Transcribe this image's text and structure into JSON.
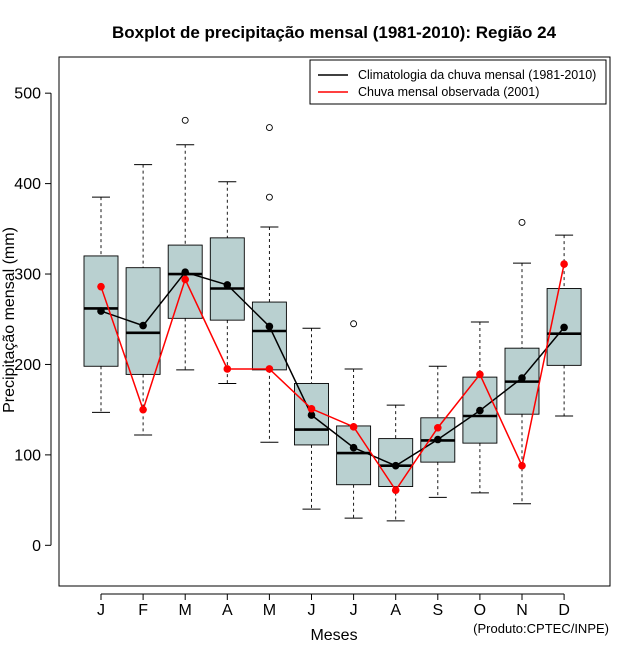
{
  "chart_data": {
    "type": "boxplot",
    "title": "Boxplot de precipitação mensal (1981-2010): Região 24",
    "xlabel": "Meses",
    "ylabel": "Precipitação mensal (mm)",
    "ylim": [
      -45,
      540
    ],
    "yticks": [
      0,
      100,
      200,
      300,
      400,
      500
    ],
    "categories": [
      "J",
      "F",
      "M",
      "A",
      "M",
      "J",
      "J",
      "A",
      "S",
      "O",
      "N",
      "D"
    ],
    "boxes": [
      {
        "min": 147,
        "q1": 198,
        "median": 262,
        "q3": 320,
        "max": 385,
        "outliers": []
      },
      {
        "min": 122,
        "q1": 189,
        "median": 235,
        "q3": 307,
        "max": 421,
        "outliers": []
      },
      {
        "min": 194,
        "q1": 251,
        "median": 300,
        "q3": 332,
        "max": 443,
        "outliers": [
          470
        ]
      },
      {
        "min": 179,
        "q1": 249,
        "median": 284,
        "q3": 340,
        "max": 402,
        "outliers": []
      },
      {
        "min": 114,
        "q1": 194,
        "median": 237,
        "q3": 269,
        "max": 352,
        "outliers": [
          385,
          462
        ]
      },
      {
        "min": 40,
        "q1": 111,
        "median": 128,
        "q3": 179,
        "max": 240,
        "outliers": []
      },
      {
        "min": 30,
        "q1": 67,
        "median": 102,
        "q3": 132,
        "max": 195,
        "outliers": [
          245
        ]
      },
      {
        "min": 27,
        "q1": 65,
        "median": 88,
        "q3": 118,
        "max": 155,
        "outliers": []
      },
      {
        "min": 53,
        "q1": 92,
        "median": 116,
        "q3": 141,
        "max": 198,
        "outliers": []
      },
      {
        "min": 58,
        "q1": 113,
        "median": 143,
        "q3": 186,
        "max": 247,
        "outliers": []
      },
      {
        "min": 46,
        "q1": 145,
        "median": 181,
        "q3": 218,
        "max": 312,
        "outliers": [
          357
        ]
      },
      {
        "min": 143,
        "q1": 199,
        "median": 234,
        "q3": 284,
        "max": 343,
        "outliers": []
      }
    ],
    "series": [
      {
        "name": "Climatologia da chuva mensal (1981-2010)",
        "color": "#000000",
        "values": [
          259,
          243,
          302,
          288,
          242,
          144,
          108,
          88,
          117,
          149,
          185,
          241
        ]
      },
      {
        "name": "Chuva mensal observada (2001)",
        "color": "#ff0000",
        "values": [
          286,
          150,
          294,
          195,
          195,
          151,
          131,
          61,
          130,
          189,
          88,
          311
        ]
      }
    ],
    "box_fill": "#b9d0d0",
    "legend": "top-right",
    "credit": "(Produto:CPTEC/INPE)"
  }
}
